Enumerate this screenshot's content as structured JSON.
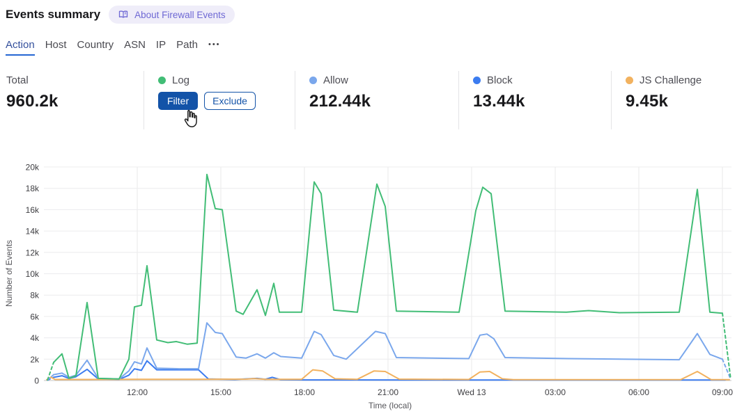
{
  "header": {
    "title": "Events summary",
    "about_label": "About Firewall Events"
  },
  "tabs": {
    "items": [
      {
        "label": "Action",
        "active": true
      },
      {
        "label": "Host"
      },
      {
        "label": "Country"
      },
      {
        "label": "ASN"
      },
      {
        "label": "IP"
      },
      {
        "label": "Path"
      }
    ],
    "more_glyph": "●●●"
  },
  "stats": {
    "cards": [
      {
        "label": "Total",
        "value": "960.2k"
      },
      {
        "label": "Log",
        "color": "#42bd76",
        "hovered": true,
        "filter_label": "Filter",
        "exclude_label": "Exclude"
      },
      {
        "label": "Allow",
        "value": "212.44k",
        "color": "#7aa7ec"
      },
      {
        "label": "Block",
        "value": "13.44k",
        "color": "#3c7cf0"
      },
      {
        "label": "JS Challenge",
        "value": "9.45k",
        "color": "#f2b25f"
      }
    ]
  },
  "colors": {
    "button_blue": "#1353a8",
    "tab_underline": "#2566d3",
    "grid_line": "#ececee",
    "baseline": "#c4c4c6"
  },
  "chart_data": {
    "type": "line",
    "title": "",
    "xlabel": "Time (local)",
    "ylabel": "Number of Events",
    "x_encoding": "decimal hours local time; 12 = Tue 12:00, 24 = Wed 13 00:00, 33 = Wed 09:00; 15-min buckets",
    "x_domain": [
      8.75,
      33.3
    ],
    "ylim": [
      0,
      20000
    ],
    "grid": true,
    "legend_position": "none (stat cards act as legend)",
    "x_ticks": [
      {
        "t": 12,
        "label": "12:00"
      },
      {
        "t": 15,
        "label": "15:00"
      },
      {
        "t": 18,
        "label": "18:00"
      },
      {
        "t": 21,
        "label": "21:00"
      },
      {
        "t": 24,
        "label": "Wed 13"
      },
      {
        "t": 27,
        "label": "03:00"
      },
      {
        "t": 30,
        "label": "06:00"
      },
      {
        "t": 33,
        "label": "09:00"
      }
    ],
    "y_ticks": [
      {
        "v": 0,
        "label": "0"
      },
      {
        "v": 2000,
        "label": "2k"
      },
      {
        "v": 4000,
        "label": "4k"
      },
      {
        "v": 6000,
        "label": "6k"
      },
      {
        "v": 8000,
        "label": "8k"
      },
      {
        "v": 10000,
        "label": "10k"
      },
      {
        "v": 12000,
        "label": "12k"
      },
      {
        "v": 14000,
        "label": "14k"
      },
      {
        "v": 16000,
        "label": "16k"
      },
      {
        "v": 18000,
        "label": "18k"
      },
      {
        "v": 20000,
        "label": "20k"
      }
    ],
    "series": [
      {
        "name": "Log",
        "color": "#42bd76",
        "z": 3,
        "dashed_head": [
          [
            8.78,
            50
          ],
          [
            9.0,
            1700
          ]
        ],
        "points": [
          [
            9.0,
            1700
          ],
          [
            9.3,
            2500
          ],
          [
            9.55,
            200
          ],
          [
            9.8,
            450
          ],
          [
            10.2,
            7300
          ],
          [
            10.6,
            200
          ],
          [
            11.35,
            150
          ],
          [
            11.7,
            2000
          ],
          [
            11.9,
            6900
          ],
          [
            12.15,
            7050
          ],
          [
            12.35,
            10750
          ],
          [
            12.7,
            3800
          ],
          [
            13.1,
            3550
          ],
          [
            13.4,
            3650
          ],
          [
            13.8,
            3400
          ],
          [
            14.15,
            3500
          ],
          [
            14.5,
            19300
          ],
          [
            14.8,
            16100
          ],
          [
            15.05,
            16000
          ],
          [
            15.55,
            6500
          ],
          [
            15.8,
            6200
          ],
          [
            16.3,
            8500
          ],
          [
            16.6,
            6100
          ],
          [
            16.9,
            9100
          ],
          [
            17.1,
            6400
          ],
          [
            17.9,
            6400
          ],
          [
            18.35,
            18600
          ],
          [
            18.6,
            17500
          ],
          [
            19.05,
            6600
          ],
          [
            19.9,
            6400
          ],
          [
            20.6,
            18400
          ],
          [
            20.9,
            16300
          ],
          [
            21.3,
            6500
          ],
          [
            23.55,
            6400
          ],
          [
            24.15,
            15900
          ],
          [
            24.4,
            18100
          ],
          [
            24.7,
            17500
          ],
          [
            25.2,
            6500
          ],
          [
            27.4,
            6400
          ],
          [
            28.2,
            6550
          ],
          [
            29.3,
            6350
          ],
          [
            31.45,
            6400
          ],
          [
            32.1,
            17900
          ],
          [
            32.55,
            6400
          ],
          [
            33.0,
            6300
          ]
        ],
        "dashed_tail": [
          [
            33.0,
            6300
          ],
          [
            33.3,
            100
          ]
        ]
      },
      {
        "name": "Allow",
        "color": "#7aa7ec",
        "z": 2,
        "dashed_head": [
          [
            8.78,
            50
          ],
          [
            9.0,
            550
          ]
        ],
        "points": [
          [
            9.0,
            550
          ],
          [
            9.3,
            700
          ],
          [
            9.55,
            300
          ],
          [
            9.8,
            500
          ],
          [
            10.2,
            1900
          ],
          [
            10.6,
            200
          ],
          [
            11.35,
            150
          ],
          [
            11.7,
            900
          ],
          [
            11.9,
            1750
          ],
          [
            12.15,
            1550
          ],
          [
            12.35,
            3050
          ],
          [
            12.7,
            1150
          ],
          [
            13.5,
            1100
          ],
          [
            14.2,
            1100
          ],
          [
            14.5,
            5400
          ],
          [
            14.8,
            4500
          ],
          [
            15.05,
            4400
          ],
          [
            15.55,
            2200
          ],
          [
            15.9,
            2100
          ],
          [
            16.3,
            2500
          ],
          [
            16.6,
            2100
          ],
          [
            16.9,
            2600
          ],
          [
            17.15,
            2250
          ],
          [
            17.9,
            2100
          ],
          [
            18.35,
            4600
          ],
          [
            18.6,
            4300
          ],
          [
            19.05,
            2350
          ],
          [
            19.5,
            2000
          ],
          [
            20.55,
            4600
          ],
          [
            20.9,
            4400
          ],
          [
            21.3,
            2150
          ],
          [
            23.9,
            2050
          ],
          [
            24.3,
            4250
          ],
          [
            24.55,
            4350
          ],
          [
            24.8,
            3900
          ],
          [
            25.2,
            2150
          ],
          [
            27.5,
            2050
          ],
          [
            31.45,
            1950
          ],
          [
            32.1,
            4400
          ],
          [
            32.55,
            2450
          ],
          [
            33.0,
            2000
          ]
        ],
        "dashed_tail": [
          [
            33.0,
            2000
          ],
          [
            33.3,
            100
          ]
        ]
      },
      {
        "name": "Block",
        "color": "#3c7cf0",
        "z": 0,
        "dashed_head": [
          [
            8.78,
            30
          ],
          [
            9.0,
            300
          ]
        ],
        "points": [
          [
            9.0,
            300
          ],
          [
            9.3,
            450
          ],
          [
            9.55,
            200
          ],
          [
            9.8,
            350
          ],
          [
            10.2,
            1050
          ],
          [
            10.6,
            150
          ],
          [
            11.35,
            100
          ],
          [
            11.7,
            500
          ],
          [
            11.9,
            1100
          ],
          [
            12.15,
            950
          ],
          [
            12.35,
            1850
          ],
          [
            12.7,
            1000
          ],
          [
            13.5,
            1000
          ],
          [
            14.2,
            1000
          ],
          [
            14.55,
            150
          ],
          [
            15.5,
            100
          ],
          [
            16.3,
            200
          ],
          [
            16.6,
            120
          ],
          [
            16.85,
            300
          ],
          [
            17.15,
            80
          ],
          [
            18.0,
            60
          ],
          [
            22.0,
            50
          ],
          [
            26.0,
            50
          ],
          [
            30.0,
            50
          ],
          [
            33.1,
            50
          ]
        ]
      },
      {
        "name": "JS Challenge",
        "color": "#f2b25f",
        "z": 1,
        "points": [
          [
            8.75,
            80
          ],
          [
            8.9,
            320
          ],
          [
            9.05,
            100
          ],
          [
            10.0,
            100
          ],
          [
            12.0,
            110
          ],
          [
            14.0,
            120
          ],
          [
            15.9,
            130
          ],
          [
            16.2,
            180
          ],
          [
            16.6,
            120
          ],
          [
            17.9,
            120
          ],
          [
            18.3,
            1000
          ],
          [
            18.65,
            900
          ],
          [
            19.1,
            160
          ],
          [
            19.9,
            120
          ],
          [
            20.5,
            900
          ],
          [
            20.9,
            850
          ],
          [
            21.4,
            130
          ],
          [
            23.9,
            100
          ],
          [
            24.3,
            800
          ],
          [
            24.65,
            850
          ],
          [
            25.1,
            160
          ],
          [
            25.5,
            80
          ],
          [
            31.5,
            80
          ],
          [
            32.1,
            850
          ],
          [
            32.6,
            80
          ],
          [
            33.25,
            80
          ]
        ]
      }
    ]
  }
}
